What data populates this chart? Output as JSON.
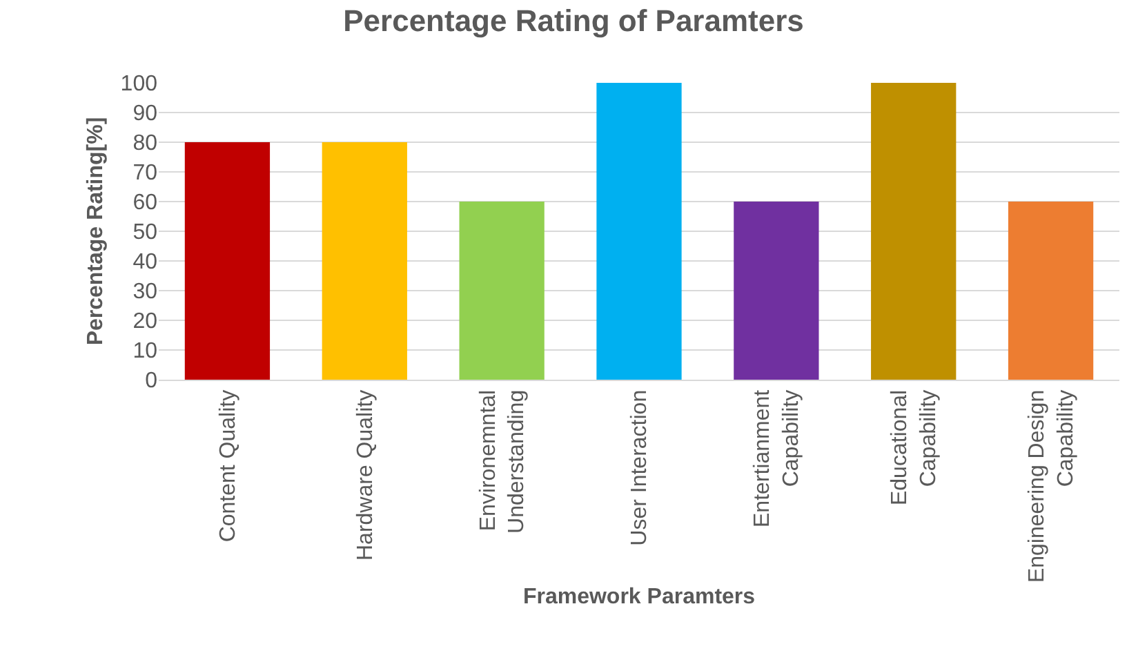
{
  "chart_data": {
    "type": "bar",
    "title": "Percentage Rating of Paramters",
    "xlabel": "Framework Paramters",
    "ylabel": "Percentage Rating[%]",
    "categories": [
      "Content Quality",
      "Hardware Quality",
      "Environemntal Understanding",
      "User Interaction",
      "Entertianment Capability",
      "Educational Capability",
      "Engineering Design Capability"
    ],
    "values": [
      80,
      80,
      60,
      100,
      60,
      100,
      60
    ],
    "colors": [
      "#c00000",
      "#ffc000",
      "#92d050",
      "#00b0f0",
      "#7030a0",
      "#bf9000",
      "#ed7d31"
    ],
    "ylim": [
      0,
      100
    ],
    "yticks": [
      0,
      10,
      20,
      30,
      40,
      50,
      60,
      70,
      80,
      90,
      100
    ],
    "grid": "y"
  }
}
